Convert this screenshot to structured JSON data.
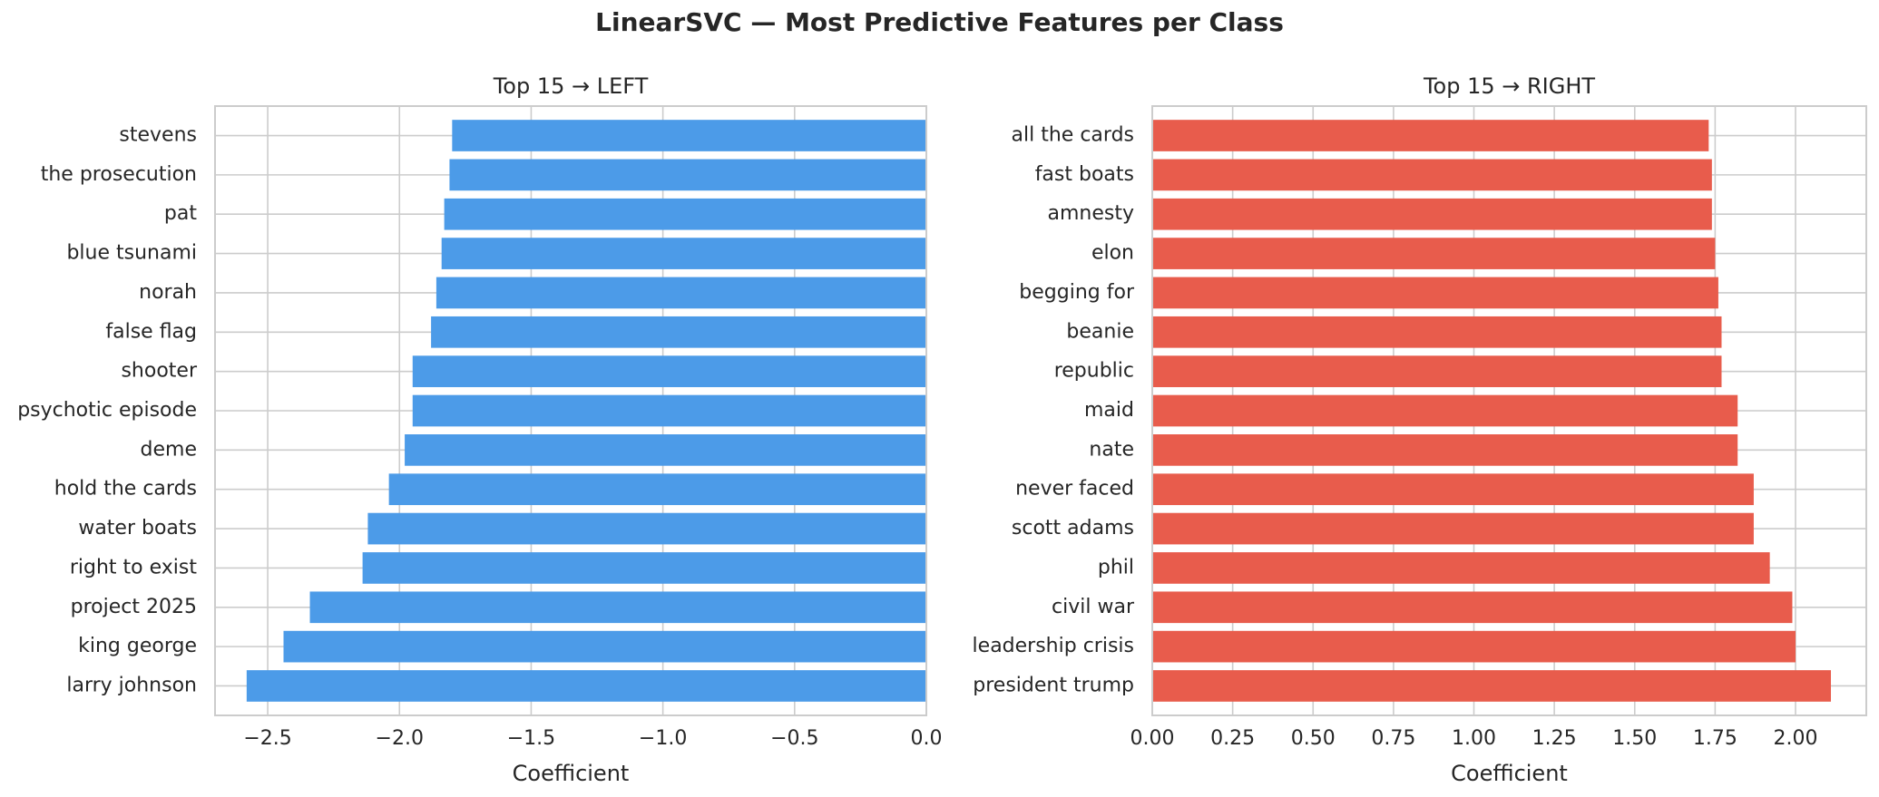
{
  "suptitle": "LinearSVC — Most Predictive Features per Class",
  "chart_data": [
    {
      "type": "bar",
      "orientation": "horizontal",
      "title": "Top 15 → LEFT",
      "xlabel": "Coefficient",
      "ylabel": "",
      "color": "#4C9BE8",
      "xlim": [
        -2.7,
        0.0
      ],
      "xticks": [
        -2.5,
        -2.0,
        -1.5,
        -1.0,
        -0.5,
        0.0
      ],
      "xtick_labels": [
        "−2.5",
        "−2.0",
        "−1.5",
        "−1.0",
        "−0.5",
        "0.0"
      ],
      "grid": true,
      "categories": [
        "stevens",
        "the prosecution",
        "pat",
        "blue tsunami",
        "norah",
        "false flag",
        "shooter",
        "psychotic episode",
        "deme",
        "hold the cards",
        "water boats",
        "right to exist",
        "project 2025",
        "king george",
        "larry johnson"
      ],
      "values": [
        -1.8,
        -1.81,
        -1.83,
        -1.84,
        -1.86,
        -1.88,
        -1.95,
        -1.95,
        -1.98,
        -2.04,
        -2.12,
        -2.14,
        -2.34,
        -2.44,
        -2.58
      ]
    },
    {
      "type": "bar",
      "orientation": "horizontal",
      "title": "Top 15 → RIGHT",
      "xlabel": "Coefficient",
      "ylabel": "",
      "color": "#E85C4C",
      "xlim": [
        0.0,
        2.22
      ],
      "xticks": [
        0.0,
        0.25,
        0.5,
        0.75,
        1.0,
        1.25,
        1.5,
        1.75,
        2.0
      ],
      "xtick_labels": [
        "0.00",
        "0.25",
        "0.50",
        "0.75",
        "1.00",
        "1.25",
        "1.50",
        "1.75",
        "2.00"
      ],
      "grid": true,
      "categories": [
        "all the cards",
        "fast boats",
        "amnesty",
        "elon",
        "begging for",
        "beanie",
        "republic",
        "maid",
        "nate",
        "never faced",
        "scott adams",
        "phil",
        "civil war",
        "leadership crisis",
        "president trump"
      ],
      "values": [
        1.73,
        1.74,
        1.74,
        1.75,
        1.76,
        1.77,
        1.77,
        1.82,
        1.82,
        1.87,
        1.87,
        1.92,
        1.99,
        2.0,
        2.11
      ]
    }
  ]
}
